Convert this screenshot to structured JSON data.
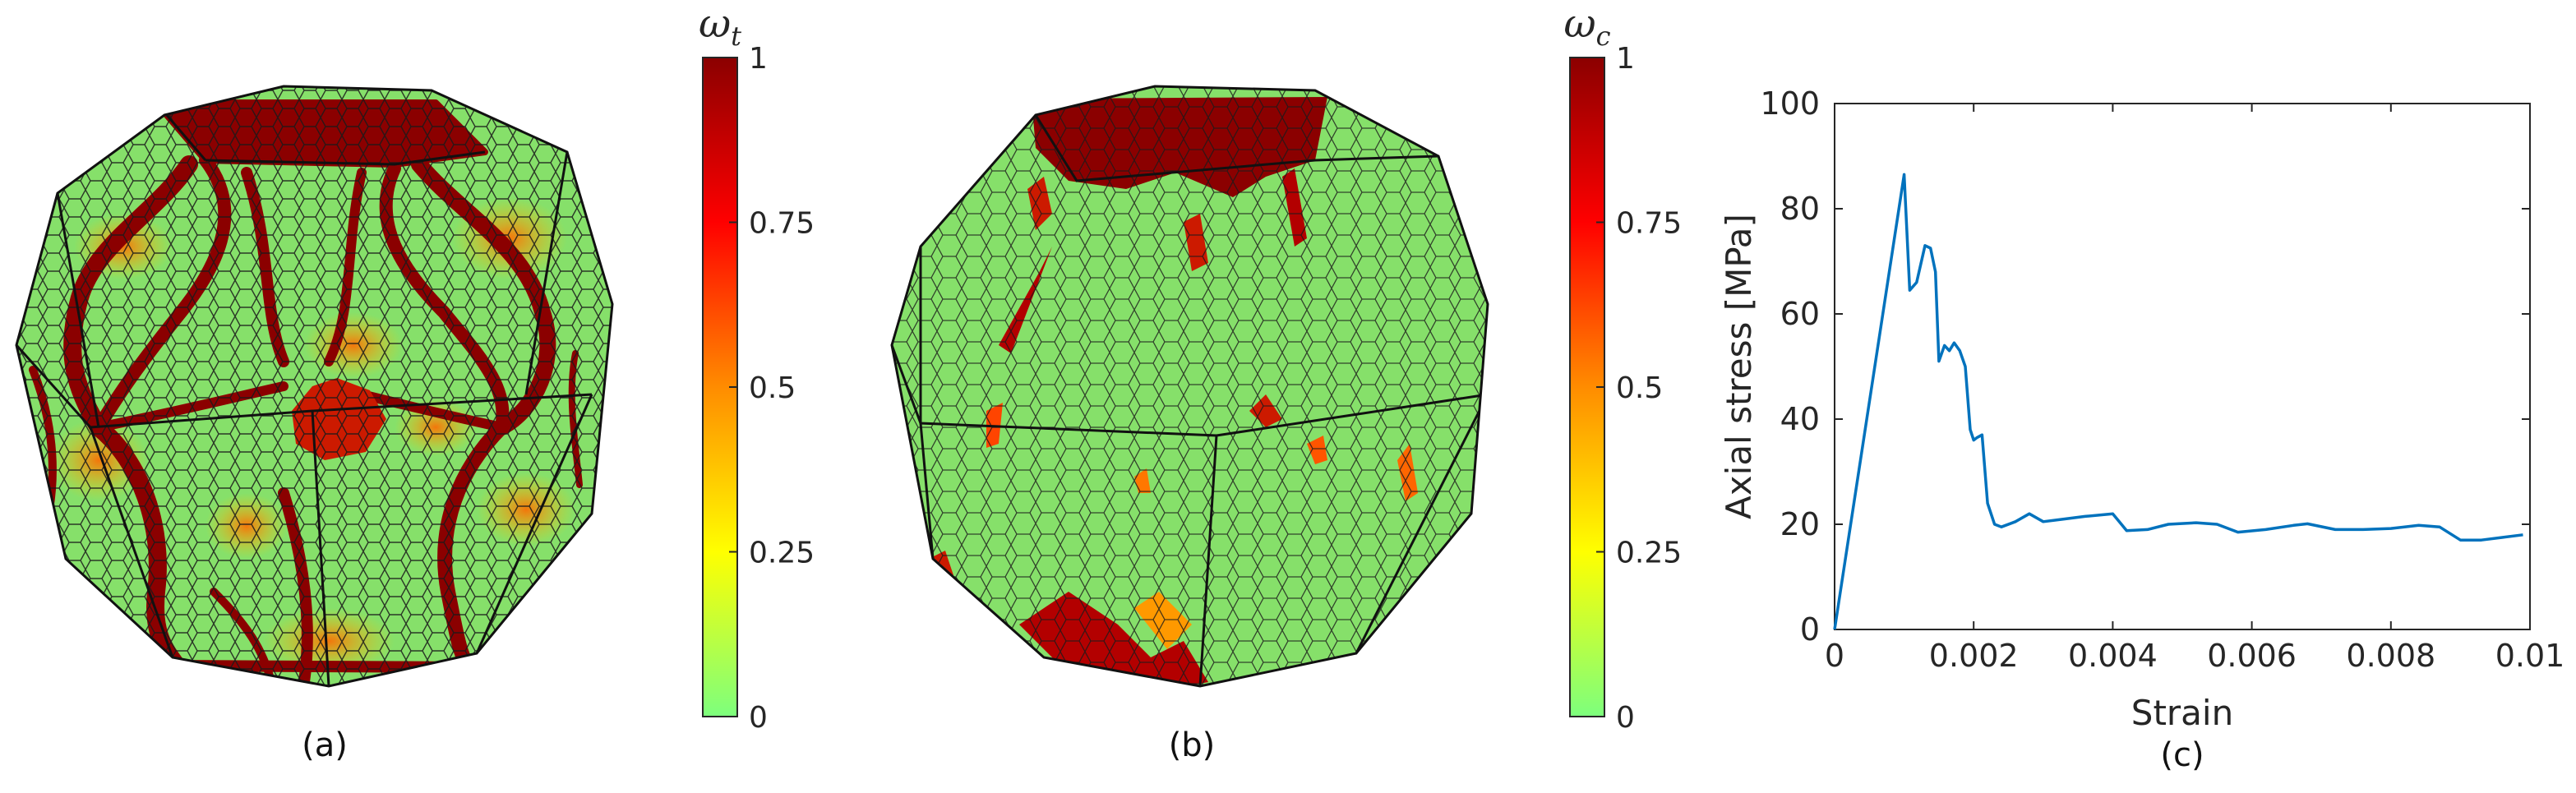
{
  "panels": [
    {
      "caption": "(a)",
      "colorbar": {
        "symbol": "ω",
        "subscript": "t",
        "ticks": [
          "0",
          "0.25",
          "0.5",
          "0.75",
          "1"
        ],
        "colors": [
          "#7dff7d",
          "#ffff00",
          "#ff8c00",
          "#ff0000",
          "#8b0000"
        ]
      }
    },
    {
      "caption": "(b)",
      "colorbar": {
        "symbol": "ω",
        "subscript": "c",
        "ticks": [
          "0",
          "0.25",
          "0.5",
          "0.75",
          "1"
        ],
        "colors": [
          "#7dff7d",
          "#ffff00",
          "#ff8c00",
          "#ff0000",
          "#8b0000"
        ]
      }
    }
  ],
  "chart_data": {
    "type": "line",
    "caption": "(c)",
    "xlabel": "Strain",
    "ylabel": "Axial stress [MPa]",
    "xlim": [
      0,
      0.01
    ],
    "ylim": [
      0,
      100
    ],
    "xticks": [
      "0",
      "0.002",
      "0.004",
      "0.006",
      "0.008",
      "0.01"
    ],
    "yticks": [
      "0",
      "20",
      "40",
      "60",
      "80",
      "100"
    ],
    "grid": false,
    "line_color": "#0072bd",
    "series": [
      {
        "x": [
          0,
          0.001,
          0.00108,
          0.00118,
          0.0013,
          0.00138,
          0.00145,
          0.0015,
          0.00158,
          0.00165,
          0.00172,
          0.0018,
          0.00188,
          0.00195,
          0.002,
          0.00205,
          0.00212,
          0.0022,
          0.0023,
          0.0024,
          0.0026,
          0.0028,
          0.003,
          0.0033,
          0.0036,
          0.004,
          0.0042,
          0.0045,
          0.0048,
          0.0052,
          0.0055,
          0.0058,
          0.0062,
          0.0066,
          0.0068,
          0.0072,
          0.0076,
          0.008,
          0.0084,
          0.0087,
          0.009,
          0.0093,
          0.0096,
          0.0099
        ],
        "y": [
          0,
          86.5,
          64.5,
          66,
          73,
          72.5,
          68,
          51,
          54,
          53,
          54.5,
          53,
          50,
          38,
          36,
          36.5,
          37,
          24,
          20,
          19.5,
          20.5,
          22,
          20.5,
          21,
          21.5,
          22,
          18.8,
          19,
          20,
          20.3,
          20,
          18.5,
          19,
          19.8,
          20.1,
          19,
          19,
          19.2,
          19.8,
          19.5,
          17,
          17,
          17.5,
          18
        ]
      }
    ]
  }
}
